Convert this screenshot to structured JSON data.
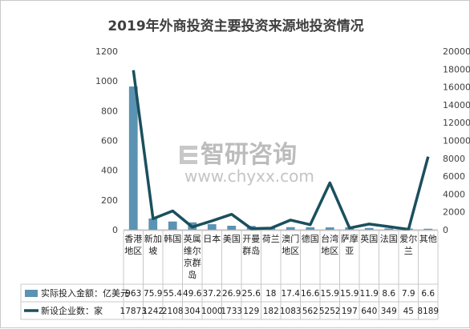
{
  "chart_data": {
    "type": "bar+line",
    "title": "2019年外商投资主要投资来源地投资情况",
    "categories": [
      "香港地区",
      "新加坡",
      "韩国",
      "英属维尔京群岛",
      "日本",
      "美国",
      "开曼群岛",
      "荷兰",
      "澳门地区",
      "德国",
      "台湾地区",
      "萨摩亚",
      "英国",
      "法国",
      "爱尔兰",
      "其他"
    ],
    "category_lines": [
      [
        "香港",
        "地区"
      ],
      [
        "新加",
        "坡"
      ],
      [
        "韩国"
      ],
      [
        "英属",
        "维尔",
        "京群",
        "岛"
      ],
      [
        "日本"
      ],
      [
        "美国"
      ],
      [
        "开曼",
        "群岛"
      ],
      [
        "荷兰"
      ],
      [
        "澳门",
        "地区"
      ],
      [
        "德国"
      ],
      [
        "台湾",
        "地区"
      ],
      [
        "萨摩",
        "亚"
      ],
      [
        "英国"
      ],
      [
        "法国"
      ],
      [
        "爱尔",
        "兰"
      ],
      [
        "其他"
      ]
    ],
    "series": [
      {
        "name": "实际投入金额：亿美元",
        "type": "bar",
        "axis": "left",
        "color": "#5b93b3",
        "values": [
          963,
          75.9,
          55.4,
          49.6,
          37.2,
          26.9,
          25.6,
          18,
          17.4,
          16.6,
          15.9,
          15.9,
          11.9,
          8.6,
          7.9,
          6.6
        ]
      },
      {
        "name": "新设企业数：家",
        "type": "line",
        "axis": "right",
        "color": "#1b4f5e",
        "values": [
          17873,
          1242,
          2108,
          304,
          1000,
          1733,
          129,
          182,
          1083,
          562,
          5252,
          197,
          640,
          349,
          45,
          8189
        ]
      }
    ],
    "y_left": {
      "min": 0,
      "max": 1200,
      "ticks": [
        0,
        200,
        400,
        600,
        800,
        1000,
        1200
      ]
    },
    "y_right": {
      "min": 0,
      "max": 20000,
      "ticks": [
        0,
        2000,
        4000,
        6000,
        8000,
        10000,
        12000,
        14000,
        16000,
        18000,
        20000
      ]
    },
    "grid": false,
    "legend": "data-table"
  },
  "watermark": {
    "brand": "智研咨询",
    "url": "www.chyxx.com"
  }
}
